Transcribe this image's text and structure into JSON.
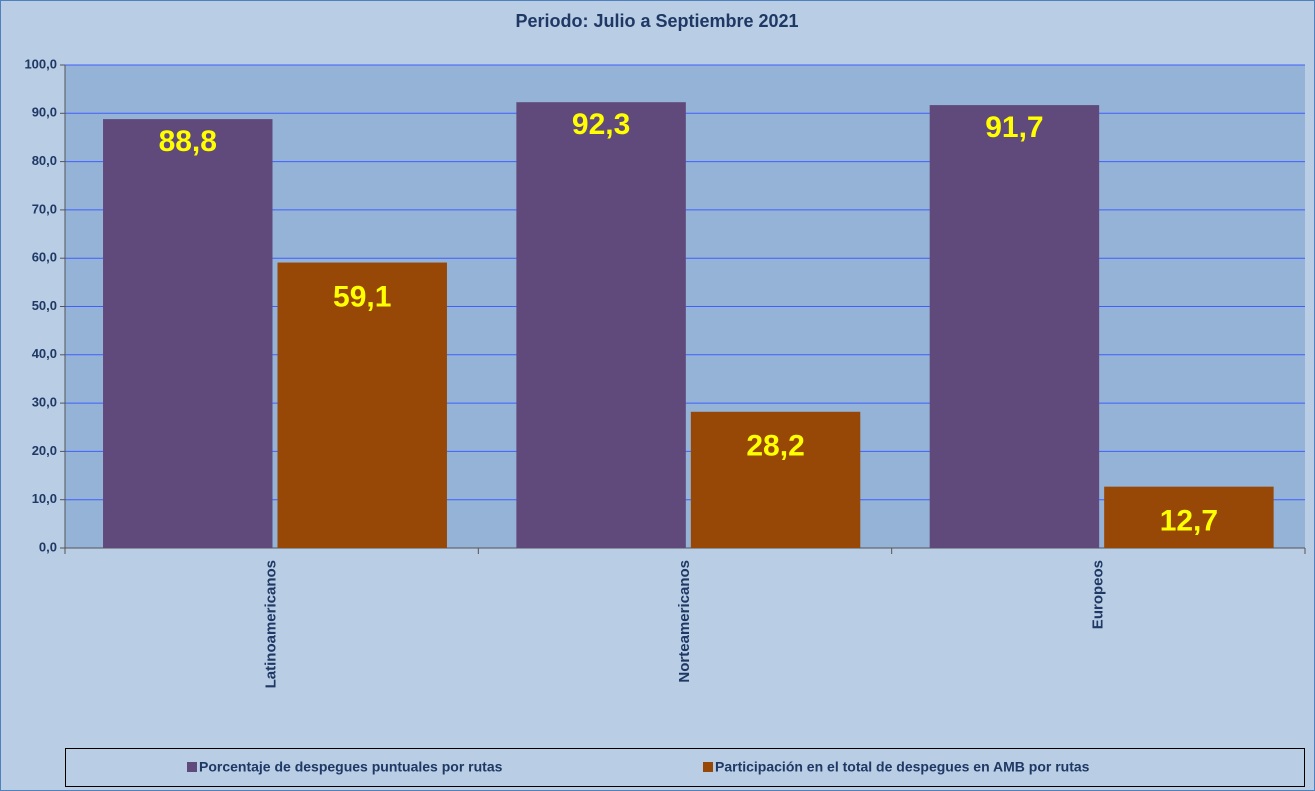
{
  "chart_data": {
    "type": "bar",
    "title": "Periodo: Julio a Septiembre  2021",
    "categories": [
      "Latinoamericanos",
      "Norteamericanos",
      "Europeos"
    ],
    "series": [
      {
        "name": "Porcentaje de despegues puntuales por rutas",
        "color": "#604a7b",
        "values": [
          88.8,
          92.3,
          91.7
        ],
        "value_labels": [
          "88,8",
          "92,3",
          "91,7"
        ]
      },
      {
        "name": "Participación en el total de despegues en AMB por rutas",
        "color": "#974806",
        "values": [
          59.1,
          28.2,
          12.7
        ],
        "value_labels": [
          "59,1",
          "28,2",
          "12,7"
        ]
      }
    ],
    "ylim": [
      0,
      100
    ],
    "yticks": [
      {
        "value": 0,
        "label": "0,0"
      },
      {
        "value": 10,
        "label": "10,0"
      },
      {
        "value": 20,
        "label": "20,0"
      },
      {
        "value": 30,
        "label": "30,0"
      },
      {
        "value": 40,
        "label": "40,0"
      },
      {
        "value": 50,
        "label": "50,0"
      },
      {
        "value": 60,
        "label": "60,0"
      },
      {
        "value": 70,
        "label": "70,0"
      },
      {
        "value": 80,
        "label": "80,0"
      },
      {
        "value": 90,
        "label": "90,0"
      },
      {
        "value": 100,
        "label": "100,0"
      }
    ],
    "grid": true,
    "legend": "bottom"
  }
}
